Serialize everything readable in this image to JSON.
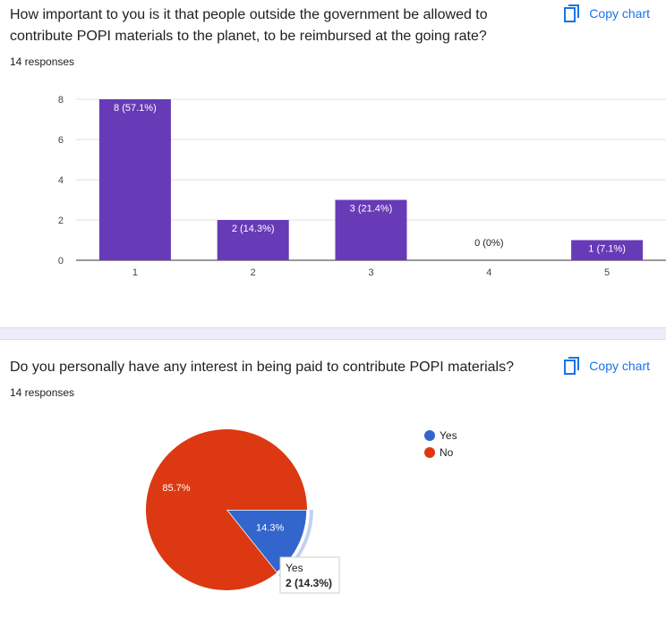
{
  "q1": {
    "title": "How important to you is it that people outside the government be allowed to contribute POPI materials to the planet, to be reimbursed at the going rate?",
    "responses": "14 responses",
    "copy_label": "Copy chart"
  },
  "q2": {
    "title": "Do you personally have any interest in being paid to contribute POPI materials?",
    "responses": "14 responses",
    "copy_label": "Copy chart",
    "tooltip": {
      "label": "Yes",
      "value": "2 (14.3%)"
    }
  },
  "chart_data": [
    {
      "type": "bar",
      "categories": [
        "1",
        "2",
        "3",
        "4",
        "5"
      ],
      "values": [
        8,
        2,
        3,
        0,
        1
      ],
      "data_labels": [
        "8 (57.1%)",
        "2 (14.3%)",
        "3 (21.4%)",
        "0 (0%)",
        "1 (7.1%)"
      ],
      "yticks": [
        0,
        2,
        4,
        6,
        8
      ],
      "ylim": [
        0,
        8
      ],
      "grid": true,
      "color": "#673ab7"
    },
    {
      "type": "pie",
      "labels": [
        "Yes",
        "No"
      ],
      "values": [
        2,
        12
      ],
      "percent_labels": [
        "14.3%",
        "85.7%"
      ],
      "colors": [
        "#3366cc",
        "#dc3912"
      ],
      "legend_position": "right",
      "highlighted": "Yes"
    }
  ]
}
